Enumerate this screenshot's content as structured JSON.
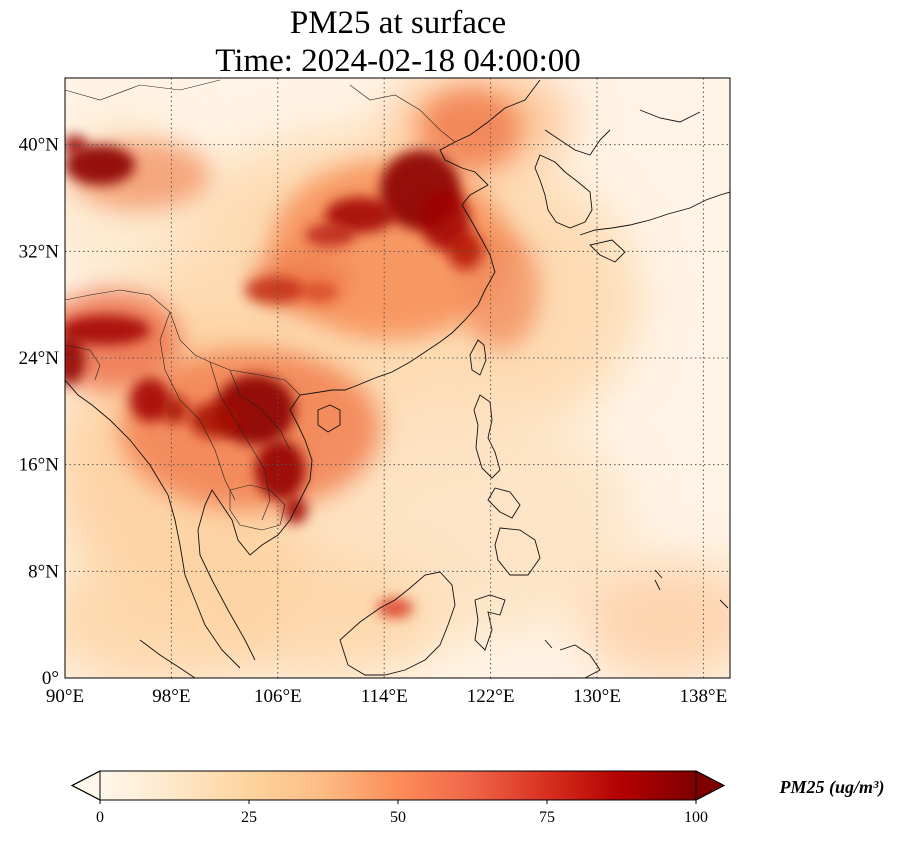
{
  "title": {
    "line1": "PM25 at surface",
    "line2": "Time: 2024-02-18 04:00:00"
  },
  "map": {
    "projection": "plate-carree",
    "lon_range": [
      90,
      140
    ],
    "lat_range": [
      0,
      45
    ],
    "lon_ticks": [
      {
        "value": 90,
        "label": "90°E"
      },
      {
        "value": 98,
        "label": "98°E"
      },
      {
        "value": 106,
        "label": "106°E"
      },
      {
        "value": 114,
        "label": "114°E"
      },
      {
        "value": 122,
        "label": "122°E"
      },
      {
        "value": 130,
        "label": "130°E"
      },
      {
        "value": 138,
        "label": "138°E"
      }
    ],
    "lat_ticks": [
      {
        "value": 0,
        "label": "0°"
      },
      {
        "value": 8,
        "label": "8°N"
      },
      {
        "value": 16,
        "label": "16°N"
      },
      {
        "value": 24,
        "label": "24°N"
      },
      {
        "value": 32,
        "label": "32°N"
      },
      {
        "value": 40,
        "label": "40°N"
      }
    ],
    "gridlines": "dotted",
    "field": "PM25 concentration",
    "colormap": "OrRd"
  },
  "colorbar": {
    "label": "PM25 (ug/m³)",
    "min": 0,
    "max": 100,
    "extend": "both",
    "orientation": "horizontal",
    "ticks": [
      {
        "value": 0,
        "label": "0"
      },
      {
        "value": 25,
        "label": "25"
      },
      {
        "value": 50,
        "label": "50"
      },
      {
        "value": 75,
        "label": "75"
      },
      {
        "value": 100,
        "label": "100"
      }
    ],
    "colors": [
      "#fff7ec",
      "#fee8c8",
      "#fdd49e",
      "#fdbb84",
      "#fc8d59",
      "#ef6548",
      "#d7301f",
      "#b30000",
      "#7f0000"
    ]
  },
  "plumes": [
    {
      "name": "north-china-plain",
      "lon": 117,
      "lat": 36,
      "level": 95
    },
    {
      "name": "sichuan-basin",
      "lon": 107,
      "lat": 30,
      "level": 75
    },
    {
      "name": "mainland-southeast-asia",
      "lon": 104,
      "lat": 19,
      "level": 95
    },
    {
      "name": "northeast-india",
      "lon": 93,
      "lat": 26,
      "level": 85
    },
    {
      "name": "taklimakan",
      "lon": 92,
      "lat": 39,
      "level": 95
    }
  ]
}
